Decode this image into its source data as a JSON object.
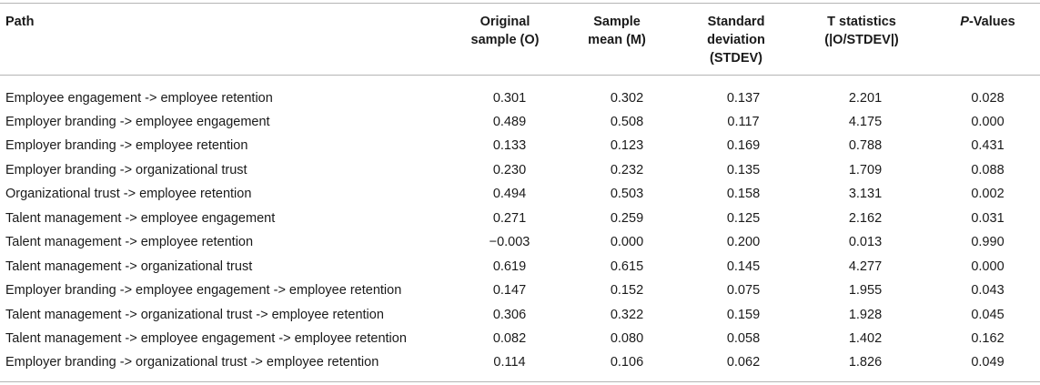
{
  "table": {
    "headers": {
      "path": "Path",
      "original": "Original sample (O)",
      "mean": "Sample mean (M)",
      "stdev": "Standard deviation (STDEV)",
      "tstat": "T statistics (|O/STDEV|)",
      "p_prefix": "P",
      "p_suffix": "-Values"
    },
    "rows": [
      {
        "path": "Employee engagement -> employee retention",
        "original": "0.301",
        "mean": "0.302",
        "stdev": "0.137",
        "tstat": "2.201",
        "p": "0.028"
      },
      {
        "path": "Employer branding -> employee engagement",
        "original": "0.489",
        "mean": "0.508",
        "stdev": "0.117",
        "tstat": "4.175",
        "p": "0.000"
      },
      {
        "path": "Employer branding -> employee retention",
        "original": "0.133",
        "mean": "0.123",
        "stdev": "0.169",
        "tstat": "0.788",
        "p": "0.431"
      },
      {
        "path": "Employer branding -> organizational trust",
        "original": "0.230",
        "mean": "0.232",
        "stdev": "0.135",
        "tstat": "1.709",
        "p": "0.088"
      },
      {
        "path": "Organizational trust -> employee retention",
        "original": "0.494",
        "mean": "0.503",
        "stdev": "0.158",
        "tstat": "3.131",
        "p": "0.002"
      },
      {
        "path": "Talent management -> employee engagement",
        "original": "0.271",
        "mean": "0.259",
        "stdev": "0.125",
        "tstat": "2.162",
        "p": "0.031"
      },
      {
        "path": "Talent management -> employee retention",
        "original": "−0.003",
        "mean": "0.000",
        "stdev": "0.200",
        "tstat": "0.013",
        "p": "0.990"
      },
      {
        "path": "Talent management -> organizational trust",
        "original": "0.619",
        "mean": "0.615",
        "stdev": "0.145",
        "tstat": "4.277",
        "p": "0.000"
      },
      {
        "path": "Employer branding -> employee engagement -> employee retention",
        "original": "0.147",
        "mean": "0.152",
        "stdev": "0.075",
        "tstat": "1.955",
        "p": "0.043"
      },
      {
        "path": "Talent management -> organizational trust -> employee retention",
        "original": "0.306",
        "mean": "0.322",
        "stdev": "0.159",
        "tstat": "1.928",
        "p": "0.045"
      },
      {
        "path": "Talent management -> employee engagement -> employee retention",
        "original": "0.082",
        "mean": "0.080",
        "stdev": "0.058",
        "tstat": "1.402",
        "p": "0.162"
      },
      {
        "path": "Employer branding -> organizational trust -> employee retention",
        "original": "0.114",
        "mean": "0.106",
        "stdev": "0.062",
        "tstat": "1.826",
        "p": "0.049"
      }
    ]
  }
}
